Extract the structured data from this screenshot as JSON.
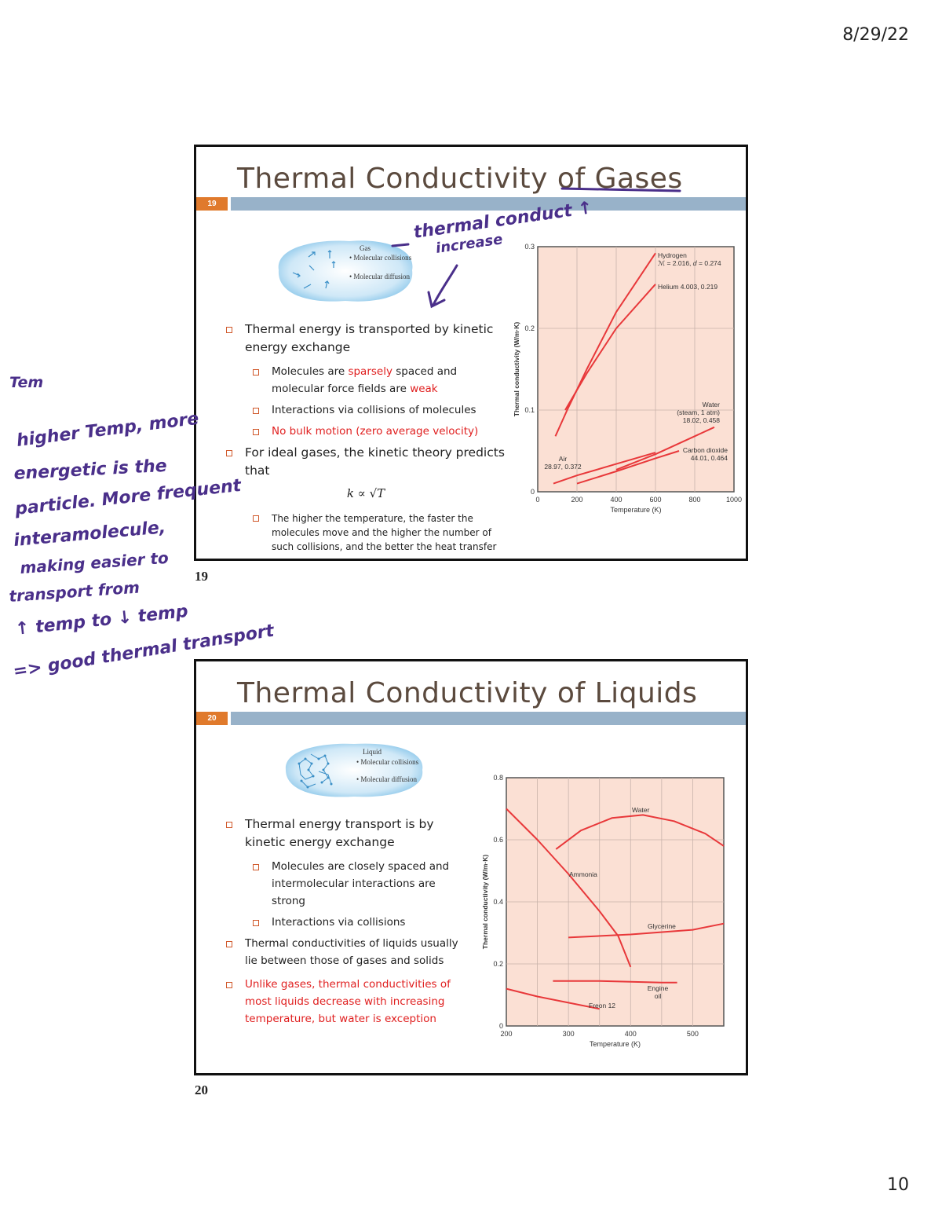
{
  "header": {
    "date": "8/29/22"
  },
  "footer": {
    "page_number": "10"
  },
  "annotations": {
    "colors": {
      "ink": "#4a2f8a"
    },
    "slide19_top": "thermal conduct ↑",
    "slide19_increase": "increase",
    "margin_lines": [
      "Tem",
      "higher Temp, more",
      "energetic is the",
      "particle. More frequent",
      "interamolecule,",
      "making easier to",
      "transport from",
      "↑ temp to ↓ temp",
      "=> good thermal transport"
    ]
  },
  "slides": [
    {
      "label": "19",
      "bar_number": "19",
      "title": "Thermal Conductivity of Gases",
      "figure": {
        "title": "Gas",
        "items": [
          "• Molecular collisions",
          "• Molecular diffusion"
        ]
      },
      "bullets": {
        "b1": "Thermal energy is transported by kinetic energy exchange",
        "b1a_pre": "Molecules are ",
        "b1a_red1": "sparsely",
        "b1a_mid": " spaced and molecular force fields are ",
        "b1a_red2": "weak",
        "b1b": "Interactions via collisions of molecules",
        "b1c": "No bulk motion (zero average velocity)",
        "b2": "For ideal gases, the kinetic theory predicts that",
        "formula": "k ∝ √T",
        "b2a": "The higher the temperature, the faster the molecules move and the higher the number of such collisions, and the better the heat transfer"
      },
      "chart_data": {
        "type": "line",
        "xlabel": "Temperature (K)",
        "ylabel": "Thermal conductivity (W/m·K)",
        "xlim": [
          0,
          1000
        ],
        "ylim": [
          0,
          0.3
        ],
        "xticks": [
          "0",
          "200",
          "400",
          "600",
          "800",
          "1000"
        ],
        "yticks": [
          "0",
          "0.1",
          "0.2",
          "0.3"
        ],
        "grid": true,
        "series": [
          {
            "name": "Hydrogen",
            "label_lines": [
              "Hydrogen",
              "ℳ = 2.016, 𝑑 = 0.274"
            ],
            "x": [
              90,
              150,
              250,
              400,
              600
            ],
            "y": [
              0.068,
              0.1,
              0.15,
              0.22,
              0.292
            ]
          },
          {
            "name": "Helium",
            "label_lines": [
              "Helium 4.003, 0.219"
            ],
            "x": [
              140,
              250,
              400,
              600
            ],
            "y": [
              0.1,
              0.145,
              0.2,
              0.254
            ]
          },
          {
            "name": "Water",
            "label_lines": [
              "Water",
              "(steam, 1 atm)",
              "18.02, 0.458"
            ],
            "x": [
              400,
              600,
              900
            ],
            "y": [
              0.027,
              0.046,
              0.079
            ]
          },
          {
            "name": "Air",
            "label_lines": [
              "Air",
              "28.97, 0.372"
            ],
            "x": [
              80,
              200,
              400,
              600
            ],
            "y": [
              0.01,
              0.02,
              0.034,
              0.048
            ]
          },
          {
            "name": "Carbon dioxide",
            "label_lines": [
              "Carbon dioxide",
              "44.01, 0.464"
            ],
            "x": [
              200,
              400,
              600,
              720
            ],
            "y": [
              0.01,
              0.025,
              0.041,
              0.05
            ]
          }
        ]
      }
    },
    {
      "label": "20",
      "bar_number": "20",
      "title": "Thermal Conductivity of Liquids",
      "figure": {
        "title": "Liquid",
        "items": [
          "• Molecular collisions",
          "• Molecular diffusion"
        ]
      },
      "bullets": {
        "b1": "Thermal energy transport is by kinetic energy exchange",
        "b1a": "Molecules are closely spaced and intermolecular interactions are strong",
        "b1b": "Interactions via collisions",
        "b2": "Thermal conductivities of liquids usually lie between those of gases and solids",
        "b3": "Unlike gases, thermal conductivities of most liquids decrease with increasing temperature, but water is exception"
      },
      "chart_data": {
        "type": "line",
        "xlabel": "Temperature (K)",
        "ylabel": "Thermal conductivity (W/m·K)",
        "xlim": [
          200,
          550
        ],
        "ylim": [
          0,
          0.8
        ],
        "xticks": [
          "200",
          "300",
          "400",
          "500"
        ],
        "yticks": [
          "0",
          "0.2",
          "0.4",
          "0.6",
          "0.8"
        ],
        "grid": true,
        "series": [
          {
            "name": "Water",
            "label_lines": [
              "Water"
            ],
            "x": [
              280,
              320,
              370,
              420,
              470,
              520,
              550
            ],
            "y": [
              0.57,
              0.63,
              0.67,
              0.68,
              0.66,
              0.62,
              0.58
            ]
          },
          {
            "name": "Ammonia",
            "label_lines": [
              "Ammonia"
            ],
            "x": [
              200,
              250,
              300,
              350,
              380,
              400
            ],
            "y": [
              0.7,
              0.6,
              0.49,
              0.37,
              0.29,
              0.19
            ]
          },
          {
            "name": "Glycerine",
            "label_lines": [
              "Glycerine"
            ],
            "x": [
              300,
              400,
              500,
              550
            ],
            "y": [
              0.285,
              0.295,
              0.31,
              0.33
            ]
          },
          {
            "name": "Engine oil",
            "label_lines": [
              "Engine",
              "oil"
            ],
            "x": [
              275,
              350,
              450,
              475
            ],
            "y": [
              0.145,
              0.145,
              0.14,
              0.14
            ]
          },
          {
            "name": "Freon 12",
            "label_lines": [
              "Freon 12"
            ],
            "x": [
              200,
              250,
              300,
              350
            ],
            "y": [
              0.12,
              0.095,
              0.075,
              0.055
            ]
          }
        ]
      }
    }
  ]
}
